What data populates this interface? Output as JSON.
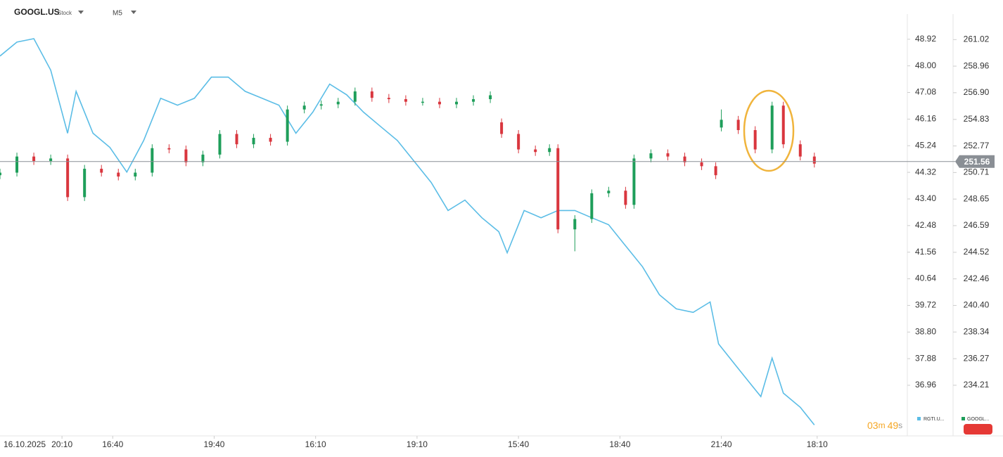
{
  "chart_data": {
    "type": "candlestick",
    "title": "GOOGL.US",
    "subtitle": "Stock",
    "timeframe": "M5",
    "date_label": "16.10.2025",
    "last_price": 251.56,
    "countdown": {
      "minutes": "03",
      "minutes_unit": "m",
      "seconds": "49",
      "seconds_unit": "s"
    },
    "xlim": [
      0,
      322
    ],
    "xticks": [
      {
        "value": 22,
        "label": "20:10"
      },
      {
        "value": 40,
        "label": "16:40"
      },
      {
        "value": 76,
        "label": "19:40"
      },
      {
        "value": 112,
        "label": "16:10"
      },
      {
        "value": 148,
        "label": "19:10"
      },
      {
        "value": 184,
        "label": "15:40"
      },
      {
        "value": 220,
        "label": "18:40"
      },
      {
        "value": 256,
        "label": "21:40"
      },
      {
        "value": 290,
        "label": "18:10"
      }
    ],
    "ylim": [
      230.28,
      263.0
    ],
    "yticks": [
      261.02,
      258.96,
      {
        "value": 256.9,
        "label": "256.90"
      },
      254.83,
      252.77,
      250.71,
      248.65,
      246.59,
      244.52,
      242.46,
      {
        "value": 240.4,
        "label": "240.40"
      },
      238.34,
      236.27,
      234.21
    ],
    "y2lim": [
      35.21,
      49.79
    ],
    "y2ticks": [
      48.92,
      {
        "value": 48,
        "label": "48.00"
      },
      47.08,
      46.16,
      45.24,
      44.32,
      {
        "value": 43.4,
        "label": "43.40"
      },
      42.48,
      41.56,
      40.64,
      39.72,
      {
        "value": 38.8,
        "label": "38.80"
      },
      37.88,
      36.96
    ],
    "series": [
      {
        "name": "GOOGL...",
        "color": "#1e9e5a",
        "down_color": "#d9363e",
        "x": [
          0,
          6,
          12,
          18,
          24,
          30,
          36,
          42,
          48,
          54,
          60,
          66,
          72,
          78,
          84,
          90,
          96,
          102,
          108,
          114,
          120,
          126,
          132,
          138,
          144,
          150,
          156,
          162,
          168,
          174,
          178,
          184,
          190,
          195,
          198,
          204,
          210,
          216,
          222,
          225,
          231,
          237,
          243,
          249,
          254,
          256,
          262,
          268,
          274,
          278,
          284,
          289
        ],
        "open": [
          250.5,
          250.7,
          251.95,
          251.6,
          251.8,
          248.8,
          251.0,
          250.7,
          250.4,
          250.7,
          252.6,
          252.5,
          251.5,
          252.1,
          253.7,
          252.9,
          253.4,
          253.1,
          255.6,
          255.9,
          256.0,
          256.2,
          257.0,
          256.5,
          256.4,
          256.2,
          256.2,
          256.0,
          256.2,
          256.4,
          254.6,
          253.7,
          252.5,
          252.3,
          252.6,
          246.3,
          247.1,
          249.1,
          249.3,
          248.2,
          251.8,
          252.2,
          251.95,
          251.5,
          251.2,
          254.2,
          254.8,
          254.0,
          252.5,
          255.9,
          252.9,
          251.95
        ],
        "high": [
          251.0,
          252.25,
          252.25,
          252.1,
          252.1,
          251.3,
          251.3,
          251.0,
          251.0,
          252.9,
          252.9,
          252.8,
          252.4,
          254.0,
          254.0,
          253.7,
          253.7,
          255.9,
          256.2,
          256.3,
          256.5,
          257.3,
          257.3,
          256.8,
          256.7,
          256.5,
          256.5,
          256.5,
          256.7,
          257.0,
          254.9,
          254.0,
          252.8,
          252.9,
          252.9,
          247.4,
          249.4,
          249.6,
          249.6,
          252.1,
          252.5,
          252.5,
          252.25,
          251.8,
          251.5,
          255.6,
          255.1,
          254.3,
          256.2,
          256.2,
          253.2,
          252.25
        ],
        "low": [
          250.2,
          250.4,
          251.3,
          251.3,
          248.5,
          248.5,
          250.4,
          250.1,
          250.1,
          250.4,
          252.2,
          251.2,
          251.2,
          251.8,
          252.6,
          252.6,
          252.8,
          252.8,
          255.3,
          255.6,
          255.7,
          255.9,
          256.2,
          256.1,
          255.9,
          255.9,
          255.7,
          255.7,
          255.9,
          256.1,
          253.4,
          252.2,
          252.0,
          252.0,
          246.0,
          244.6,
          246.8,
          248.8,
          247.9,
          247.9,
          251.5,
          251.65,
          251.2,
          250.9,
          250.2,
          253.9,
          253.7,
          252.2,
          252.2,
          252.6,
          251.65,
          251.1
        ],
        "close": [
          250.7,
          251.95,
          251.6,
          251.8,
          248.8,
          251.0,
          250.7,
          250.4,
          250.7,
          252.6,
          252.5,
          251.5,
          252.1,
          253.7,
          252.9,
          253.4,
          253.1,
          255.6,
          255.9,
          256.0,
          256.2,
          257.0,
          256.5,
          256.4,
          256.2,
          256.2,
          256.0,
          256.2,
          256.4,
          256.7,
          253.7,
          252.5,
          252.3,
          252.6,
          246.3,
          247.1,
          249.1,
          249.3,
          248.2,
          251.8,
          252.2,
          251.95,
          251.5,
          251.2,
          250.5,
          254.8,
          254.0,
          252.5,
          255.9,
          252.9,
          251.95,
          251.4
        ]
      },
      {
        "name": "RGTI.U...",
        "color": "#5bbde6",
        "axis": "y2",
        "x": [
          0,
          6,
          12,
          18,
          24,
          27,
          33,
          39,
          45,
          51,
          57,
          63,
          69,
          75,
          81,
          87,
          93,
          99,
          105,
          111,
          117,
          123,
          129,
          135,
          141,
          147,
          153,
          159,
          165,
          171,
          177,
          180,
          186,
          192,
          198,
          204,
          210,
          216,
          222,
          228,
          234,
          240,
          246,
          252,
          255,
          261,
          267,
          270,
          274,
          278,
          284,
          289
        ],
        "values": [
          48.34,
          48.82,
          48.94,
          47.85,
          45.67,
          47.12,
          45.67,
          45.18,
          44.33,
          45.42,
          46.88,
          46.64,
          46.88,
          47.61,
          47.61,
          47.12,
          46.88,
          46.64,
          45.67,
          46.4,
          47.37,
          47.0,
          46.4,
          45.91,
          45.42,
          44.7,
          43.97,
          43.0,
          43.36,
          42.75,
          42.27,
          41.54,
          43.0,
          42.75,
          43.0,
          43.0,
          42.75,
          42.51,
          41.78,
          41.06,
          40.09,
          39.6,
          39.48,
          39.84,
          38.39,
          37.66,
          36.93,
          36.57,
          37.9,
          36.69,
          36.2,
          35.59
        ]
      }
    ]
  }
}
